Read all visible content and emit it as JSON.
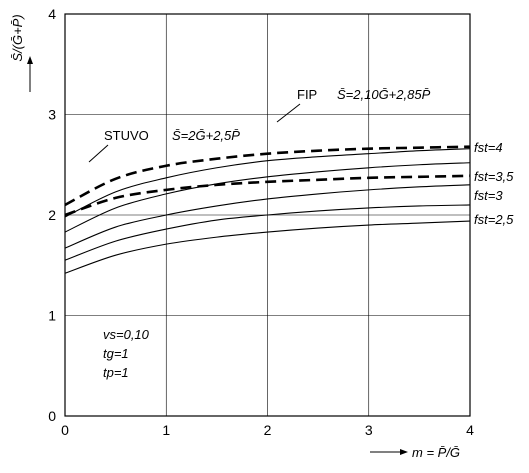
{
  "chart_data": {
    "type": "line",
    "xlabel": "m = P̄/Ḡ",
    "ylabel": "S̄/(Ḡ+P̄)",
    "xlim": [
      0,
      4
    ],
    "ylim": [
      0,
      4
    ],
    "x_ticks": [
      "0",
      "1",
      "2",
      "3",
      "4"
    ],
    "y_ticks": [
      "0",
      "1",
      "2",
      "3",
      "4"
    ],
    "grid": true,
    "series": [
      {
        "name": "fst=2,5",
        "style": "solid",
        "x": [
          0,
          0.5,
          1,
          1.5,
          2,
          2.5,
          3,
          3.5,
          4
        ],
        "y": [
          1.42,
          1.6,
          1.71,
          1.78,
          1.83,
          1.87,
          1.9,
          1.92,
          1.94
        ]
      },
      {
        "name": "",
        "style": "solid",
        "x": [
          0,
          0.5,
          1,
          1.5,
          2,
          2.5,
          3,
          3.5,
          4
        ],
        "y": [
          1.55,
          1.74,
          1.86,
          1.95,
          2.0,
          2.04,
          2.07,
          2.09,
          2.1
        ]
      },
      {
        "name": "fst=3",
        "style": "solid",
        "x": [
          0,
          0.5,
          1,
          1.5,
          2,
          2.5,
          3,
          3.5,
          4
        ],
        "y": [
          1.67,
          1.88,
          2.0,
          2.09,
          2.16,
          2.21,
          2.25,
          2.28,
          2.3
        ]
      },
      {
        "name": "fst=3,5",
        "style": "solid",
        "x": [
          0,
          0.5,
          1,
          1.5,
          2,
          2.5,
          3,
          3.5,
          4
        ],
        "y": [
          1.83,
          2.07,
          2.21,
          2.31,
          2.38,
          2.43,
          2.47,
          2.5,
          2.52
        ]
      },
      {
        "name": "fst=4",
        "style": "solid",
        "x": [
          0,
          0.5,
          1,
          1.5,
          2,
          2.5,
          3,
          3.5,
          4
        ],
        "y": [
          1.98,
          2.23,
          2.37,
          2.47,
          2.54,
          2.58,
          2.61,
          2.64,
          2.66
        ]
      },
      {
        "name": "STUVO",
        "style": "dashed",
        "x": [
          0,
          0.5,
          1,
          1.5,
          2,
          2.5,
          3,
          3.5,
          4
        ],
        "y": [
          2.0,
          2.17,
          2.25,
          2.3,
          2.33,
          2.35,
          2.37,
          2.38,
          2.39
        ]
      },
      {
        "name": "FIP",
        "style": "dashed",
        "x": [
          0,
          0.5,
          1,
          1.5,
          2,
          2.5,
          3,
          3.5,
          4
        ],
        "y": [
          2.1,
          2.36,
          2.49,
          2.56,
          2.61,
          2.64,
          2.66,
          2.67,
          2.68
        ]
      }
    ],
    "annotations": {
      "fip_label": "FIP",
      "fip_formula": "S̄=2,10Ḡ+2,85P̄",
      "stuvo_label": "STUVO",
      "stuvo_formula": "S̄=2Ḡ+2,5P̄",
      "fst_4": "fst=4",
      "fst_35": "fst=3,5",
      "fst_3": "fst=3",
      "fst_25": "fst=2,5",
      "params": [
        "vs=0,10",
        "tg=1",
        "tp=1"
      ]
    }
  }
}
